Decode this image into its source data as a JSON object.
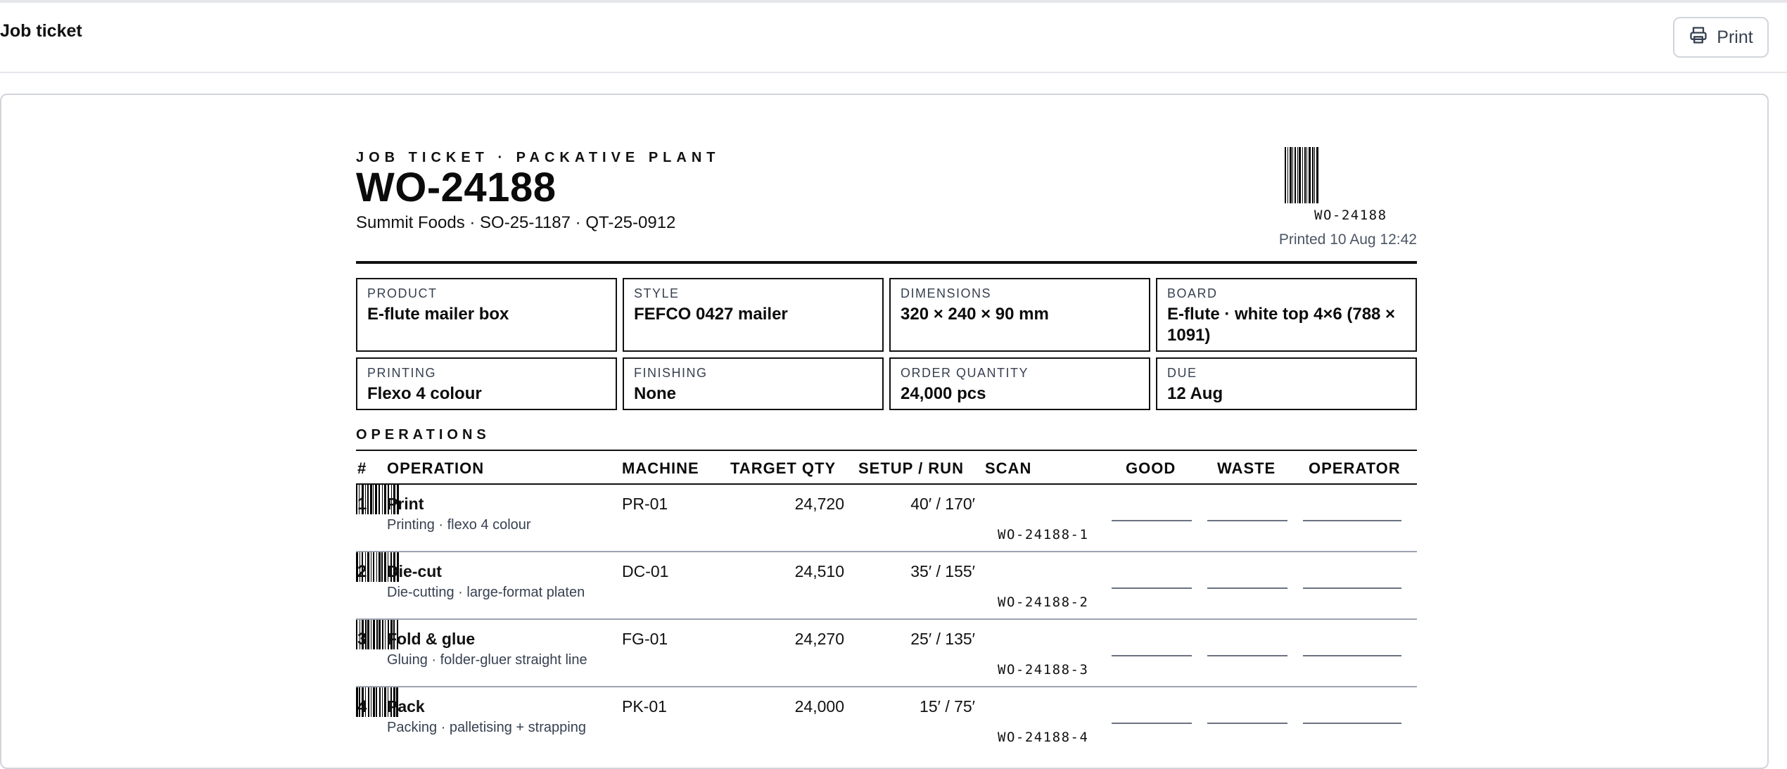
{
  "topbar": {
    "title": "Job ticket",
    "print_label": "Print"
  },
  "ticket": {
    "kicker": "JOB TICKET · PACKATIVE PLANT",
    "wo_number": "WO-24188",
    "refs": "Summit Foods · SO-25-1187 · QT-25-0912",
    "barcode_label": "WO-24188",
    "printed_at": "Printed 10 Aug 12:42"
  },
  "specs": [
    {
      "label": "PRODUCT",
      "value": "E-flute mailer box"
    },
    {
      "label": "STYLE",
      "value": "FEFCO 0427 mailer"
    },
    {
      "label": "DIMENSIONS",
      "value": "320 × 240 × 90 mm"
    },
    {
      "label": "BOARD",
      "value": "E-flute · white top 4×6 (788 × 1091)"
    },
    {
      "label": "PRINTING",
      "value": "Flexo 4 colour"
    },
    {
      "label": "FINISHING",
      "value": "None"
    },
    {
      "label": "ORDER QUANTITY",
      "value": "24,000 pcs"
    },
    {
      "label": "DUE",
      "value": "12 Aug"
    }
  ],
  "operations": {
    "title": "OPERATIONS",
    "columns": {
      "num": "#",
      "operation": "OPERATION",
      "machine": "MACHINE",
      "target_qty": "TARGET QTY",
      "setup_run": "SETUP / RUN",
      "scan": "SCAN",
      "good": "GOOD",
      "waste": "WASTE",
      "operator": "OPERATOR"
    },
    "rows": [
      {
        "num": "1",
        "name": "Print",
        "desc": "Printing · flexo 4 colour",
        "machine": "PR-01",
        "target_qty": "24,720",
        "setup_run": "40′ / 170′",
        "code": "WO-24188-1"
      },
      {
        "num": "2",
        "name": "Die-cut",
        "desc": "Die-cutting · large-format platen",
        "machine": "DC-01",
        "target_qty": "24,510",
        "setup_run": "35′ / 155′",
        "code": "WO-24188-2"
      },
      {
        "num": "3",
        "name": "Fold & glue",
        "desc": "Gluing · folder-gluer straight line",
        "machine": "FG-01",
        "target_qty": "24,270",
        "setup_run": "25′ / 135′",
        "code": "WO-24188-3"
      },
      {
        "num": "4",
        "name": "Pack",
        "desc": "Packing · palletising + strapping",
        "machine": "PK-01",
        "target_qty": "24,000",
        "setup_run": "15′ / 75′",
        "code": "WO-24188-4"
      }
    ]
  }
}
